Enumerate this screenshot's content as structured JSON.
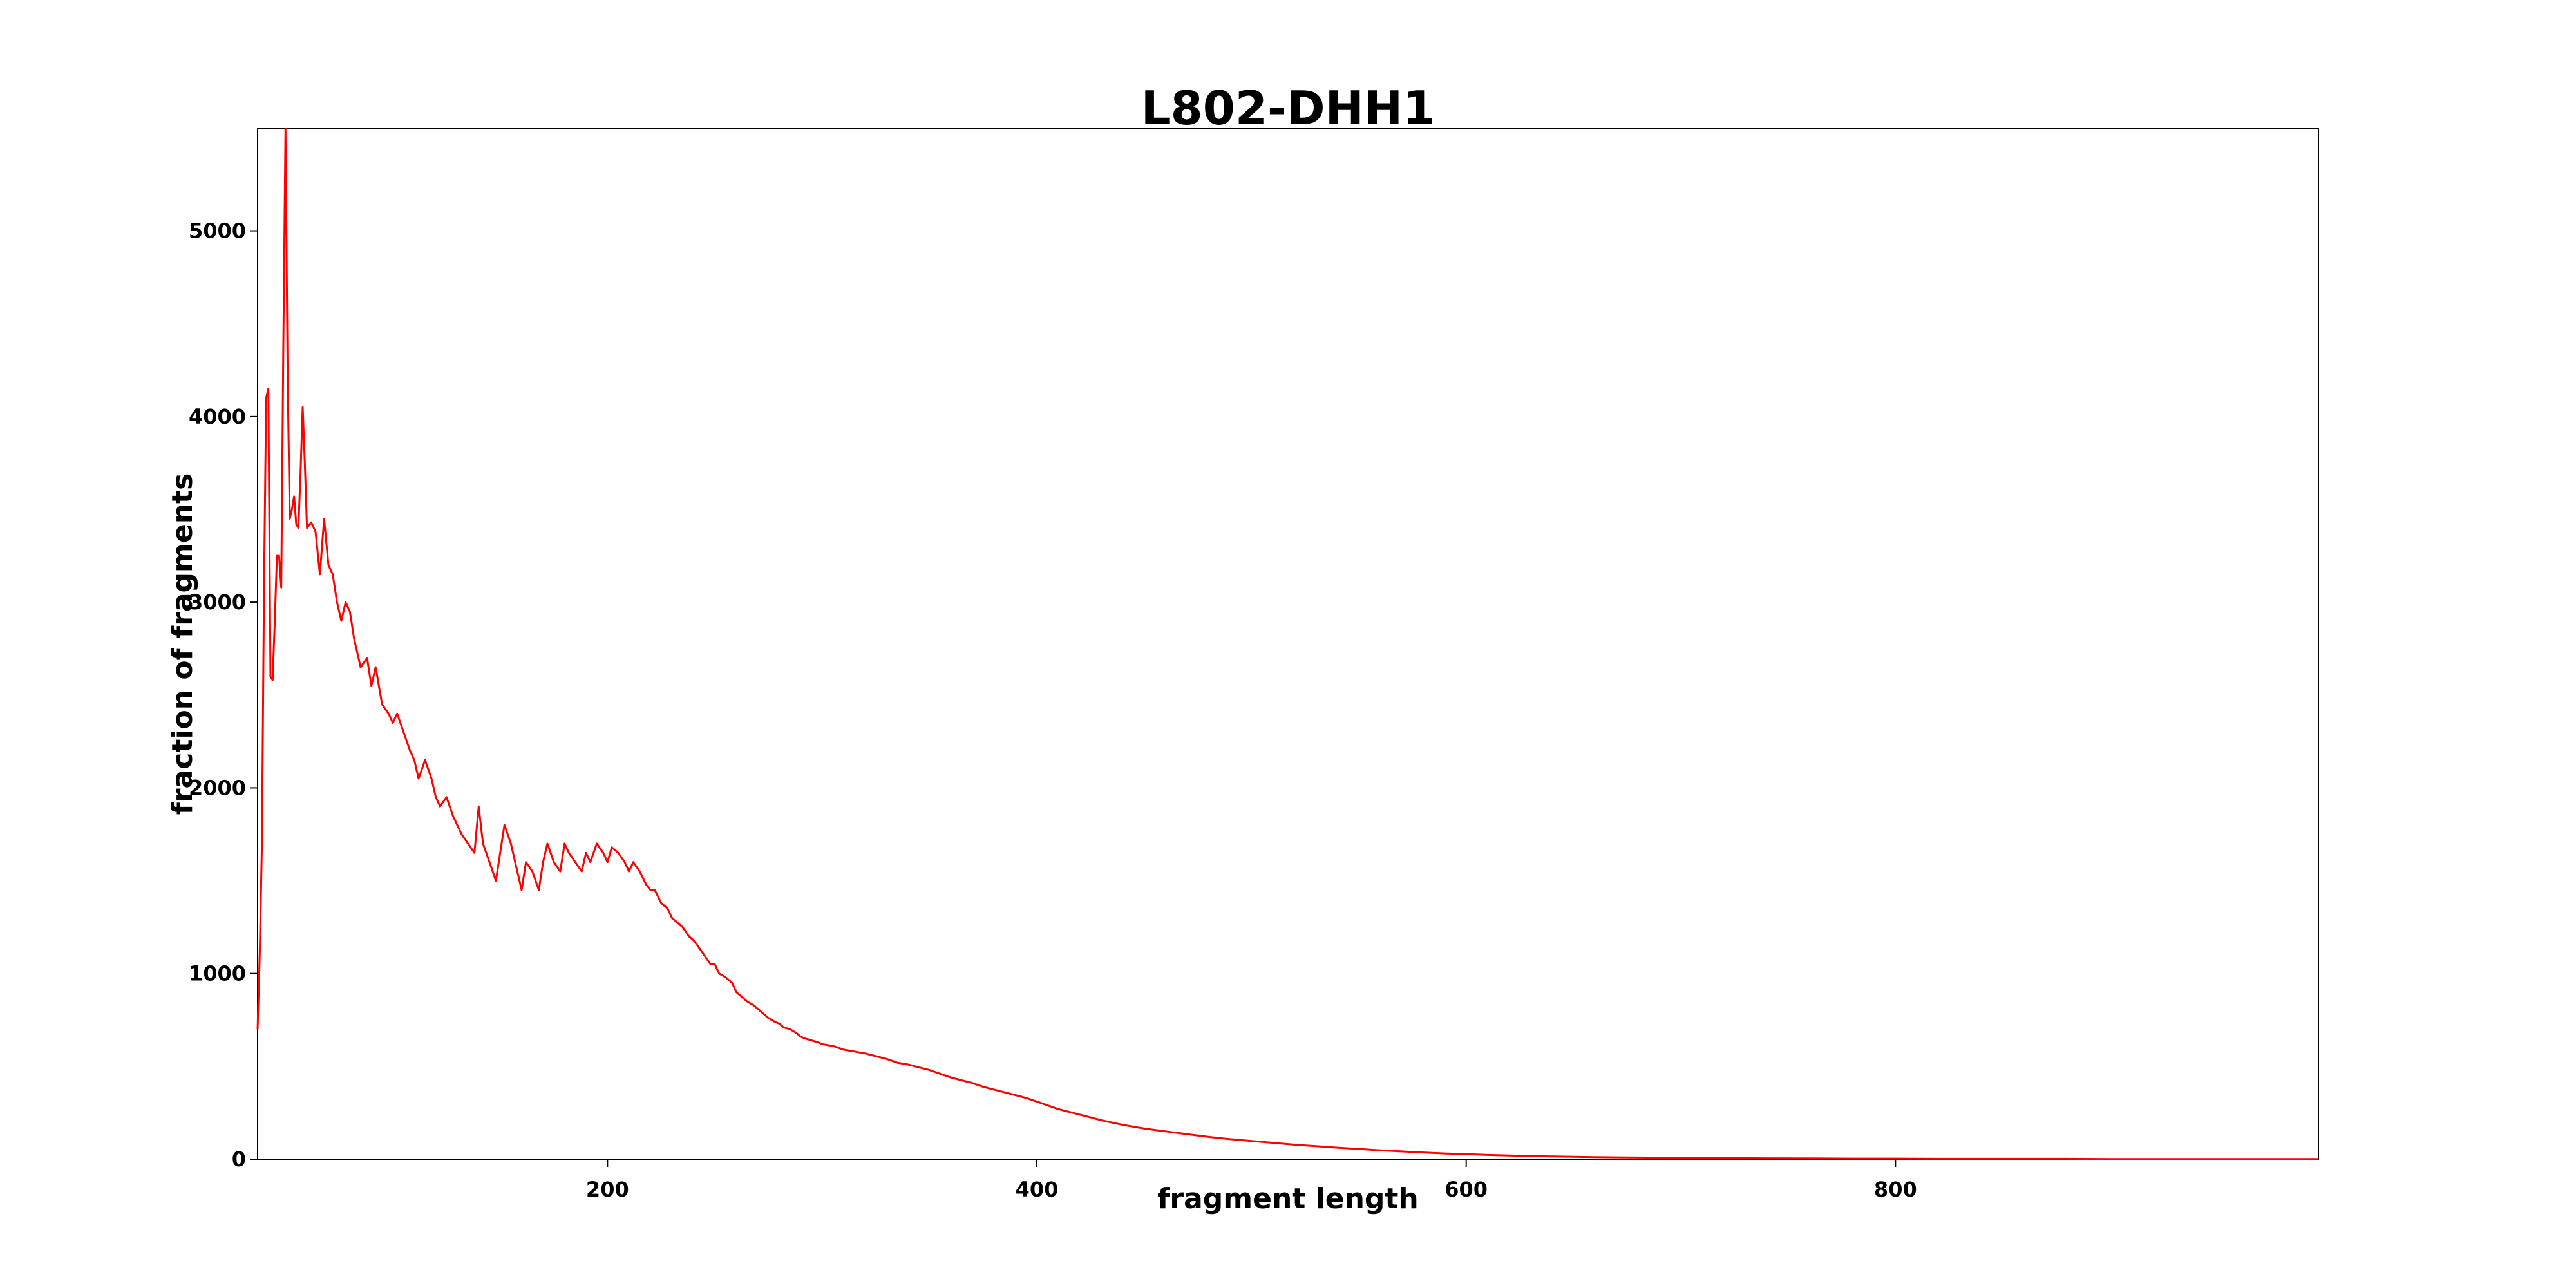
{
  "chart_data": {
    "type": "line",
    "title": "L802-DHH1",
    "xlabel": "fragment length",
    "ylabel": "fraction of fragments",
    "xlim": [
      37,
      997
    ],
    "ylim": [
      0,
      5550
    ],
    "xticks": [
      200,
      400,
      600,
      800
    ],
    "xtick_labels": [
      "200",
      "400",
      "600",
      "800"
    ],
    "yticks": [
      0,
      1000,
      2000,
      3000,
      4000,
      5000
    ],
    "ytick_labels": [
      "0",
      "1000",
      "2000",
      "3000",
      "4000",
      "5000"
    ],
    "grid": false,
    "legend": "none",
    "colors": {
      "line": "#ff0000",
      "frame": "#000000"
    },
    "series": [
      {
        "x": [
          37,
          38,
          39,
          40,
          41,
          42,
          43,
          44,
          45,
          46,
          47,
          48,
          49,
          50,
          51,
          52,
          53,
          54,
          55,
          56,
          57,
          58,
          59,
          60,
          62,
          64,
          66,
          68,
          70,
          72,
          74,
          76,
          78,
          80,
          82,
          85,
          88,
          90,
          92,
          95,
          98,
          100,
          102,
          105,
          108,
          110,
          112,
          115,
          118,
          120,
          122,
          125,
          128,
          130,
          132,
          135,
          138,
          140,
          142,
          145,
          148,
          150,
          152,
          155,
          158,
          160,
          162,
          165,
          168,
          170,
          172,
          175,
          178,
          180,
          182,
          185,
          188,
          190,
          192,
          195,
          198,
          200,
          202,
          205,
          208,
          210,
          212,
          215,
          218,
          220,
          222,
          225,
          228,
          230,
          232,
          235,
          238,
          240,
          242,
          245,
          248,
          250,
          252,
          255,
          258,
          260,
          262,
          265,
          268,
          270,
          272,
          275,
          278,
          280,
          282,
          285,
          288,
          290,
          292,
          295,
          298,
          300,
          305,
          310,
          315,
          320,
          325,
          330,
          335,
          340,
          345,
          350,
          355,
          360,
          365,
          370,
          375,
          380,
          385,
          390,
          395,
          400,
          405,
          410,
          415,
          420,
          425,
          430,
          440,
          450,
          460,
          470,
          480,
          490,
          500,
          510,
          520,
          530,
          540,
          550,
          560,
          570,
          580,
          590,
          600,
          610,
          620,
          630,
          640,
          650,
          660,
          670,
          680,
          690,
          700,
          720,
          740,
          760,
          780,
          800,
          820,
          840,
          860,
          880,
          900,
          920,
          940,
          960,
          980,
          997
        ],
        "y": [
          700,
          1100,
          1700,
          3100,
          4100,
          4150,
          2600,
          2580,
          2900,
          3250,
          3250,
          3080,
          4400,
          5550,
          4200,
          3450,
          3500,
          3570,
          3420,
          3400,
          3700,
          4050,
          3750,
          3400,
          3430,
          3380,
          3150,
          3450,
          3200,
          3150,
          3000,
          2900,
          3000,
          2950,
          2800,
          2650,
          2700,
          2550,
          2650,
          2450,
          2400,
          2350,
          2400,
          2300,
          2200,
          2150,
          2050,
          2150,
          2050,
          1950,
          1900,
          1950,
          1850,
          1800,
          1750,
          1700,
          1650,
          1900,
          1700,
          1600,
          1500,
          1650,
          1800,
          1700,
          1550,
          1450,
          1600,
          1550,
          1450,
          1600,
          1700,
          1600,
          1550,
          1700,
          1650,
          1600,
          1550,
          1650,
          1600,
          1700,
          1650,
          1600,
          1680,
          1650,
          1600,
          1550,
          1600,
          1550,
          1480,
          1450,
          1450,
          1380,
          1350,
          1300,
          1280,
          1250,
          1200,
          1180,
          1150,
          1100,
          1050,
          1050,
          1000,
          980,
          950,
          900,
          880,
          850,
          830,
          810,
          790,
          760,
          740,
          730,
          710,
          700,
          680,
          660,
          650,
          640,
          630,
          620,
          610,
          590,
          580,
          570,
          555,
          540,
          520,
          510,
          495,
          480,
          460,
          440,
          425,
          410,
          390,
          375,
          360,
          345,
          330,
          310,
          290,
          270,
          255,
          240,
          225,
          210,
          185,
          165,
          150,
          135,
          120,
          108,
          98,
          88,
          78,
          70,
          62,
          55,
          48,
          42,
          36,
          31,
          27,
          23,
          20,
          17,
          15,
          13,
          11,
          10,
          9,
          8,
          7,
          6,
          5,
          4,
          3,
          3,
          2,
          2,
          2,
          2,
          1,
          1,
          1,
          1,
          1,
          1
        ]
      }
    ]
  }
}
